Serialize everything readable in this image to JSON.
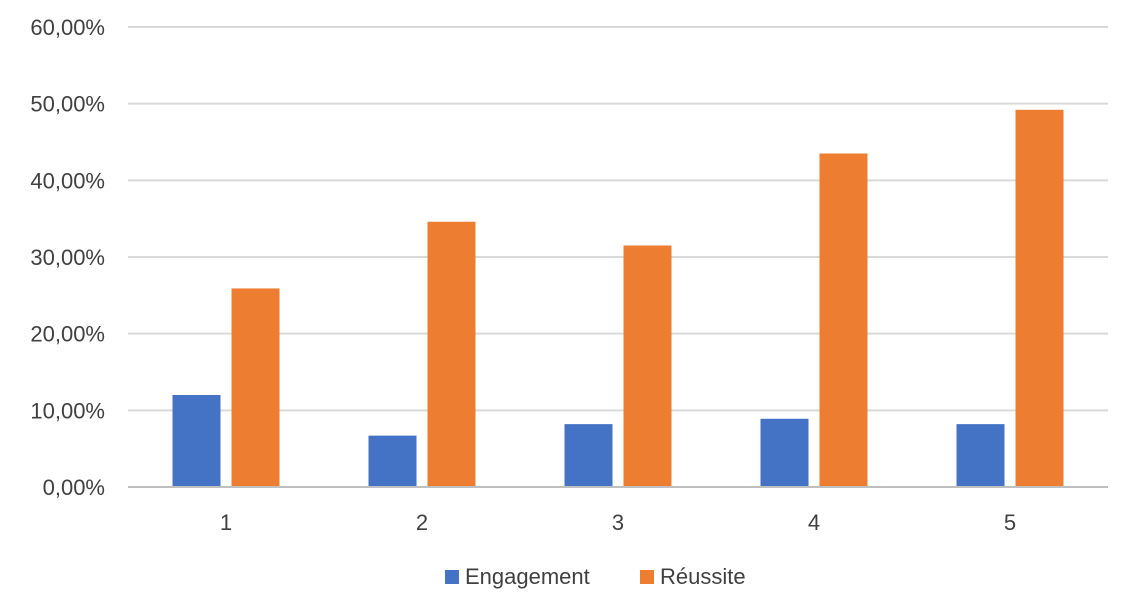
{
  "chart_data": {
    "type": "bar",
    "categories": [
      "1",
      "2",
      "3",
      "4",
      "5"
    ],
    "series": [
      {
        "name": "Engagement",
        "color": "#4472C4",
        "values": [
          12.0,
          6.7,
          8.2,
          8.9,
          8.2
        ]
      },
      {
        "name": "Réussite",
        "color": "#ED7D31",
        "values": [
          25.9,
          34.6,
          31.5,
          43.5,
          49.2
        ]
      }
    ],
    "title": "",
    "xlabel": "",
    "ylabel": "",
    "ylim": [
      0,
      60
    ],
    "yticks": [
      0,
      10,
      20,
      30,
      40,
      50,
      60
    ],
    "ytick_labels": [
      "0,00%",
      "10,00%",
      "20,00%",
      "30,00%",
      "40,00%",
      "50,00%",
      "60,00%"
    ],
    "grid": true,
    "legend_position": "bottom"
  }
}
